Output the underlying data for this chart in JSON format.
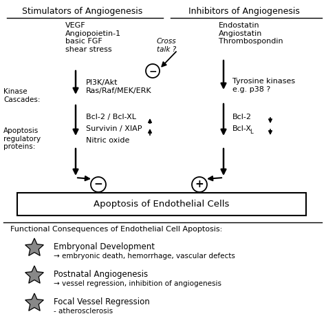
{
  "bg_color": "#ffffff",
  "fig_width": 4.74,
  "fig_height": 4.88,
  "dpi": 100,
  "left_header": "Stimulators of Angiogenesis",
  "right_header": "Inhibitors of Angiogenesis",
  "left_stimulators": "VEGF\nAngiopoietin-1\nbasic FGF\nshear stress",
  "cross_talk": "Cross\ntalk ?",
  "right_inhibitors": "Endostatin\nAngiostatin\nThrombospondin",
  "kinase_label": "Kinase\nCascades:",
  "left_kinase": "PI3K/Akt\nRas/Raf/MEK/ERK",
  "right_kinase": "Tyrosine kinases\ne.g. p38 ?",
  "apoptosis_label": "Apoptosis\nregulatory\nproteins:",
  "left_apoptosis_line1": "Bcl-2 / Bcl-XL",
  "left_apoptosis_line2": "Survivin / XIAP",
  "left_apoptosis_line3": "Nitric oxide",
  "right_apop_line1": "Bcl-2",
  "right_apop_line2": "Bcl-X",
  "right_apop_sub": "L",
  "box_label": "Apoptosis of Endothelial Cells",
  "functional_header": "Functional Consequences of Endothelial Cell Apoptosis:",
  "item1_title": "Embryonal Development",
  "item1_sub": "→ embryonic death, hemorrhage, vascular defects",
  "item2_title": "Postnatal Angiogenesis",
  "item2_sub": "→ vessel regression, inhibition of angiogenesis",
  "item3_title": "Focal Vessel Regression",
  "item3_sub": "- atherosclerosis",
  "star_color": "#888888",
  "text_color": "#000000",
  "line_color": "#000000"
}
